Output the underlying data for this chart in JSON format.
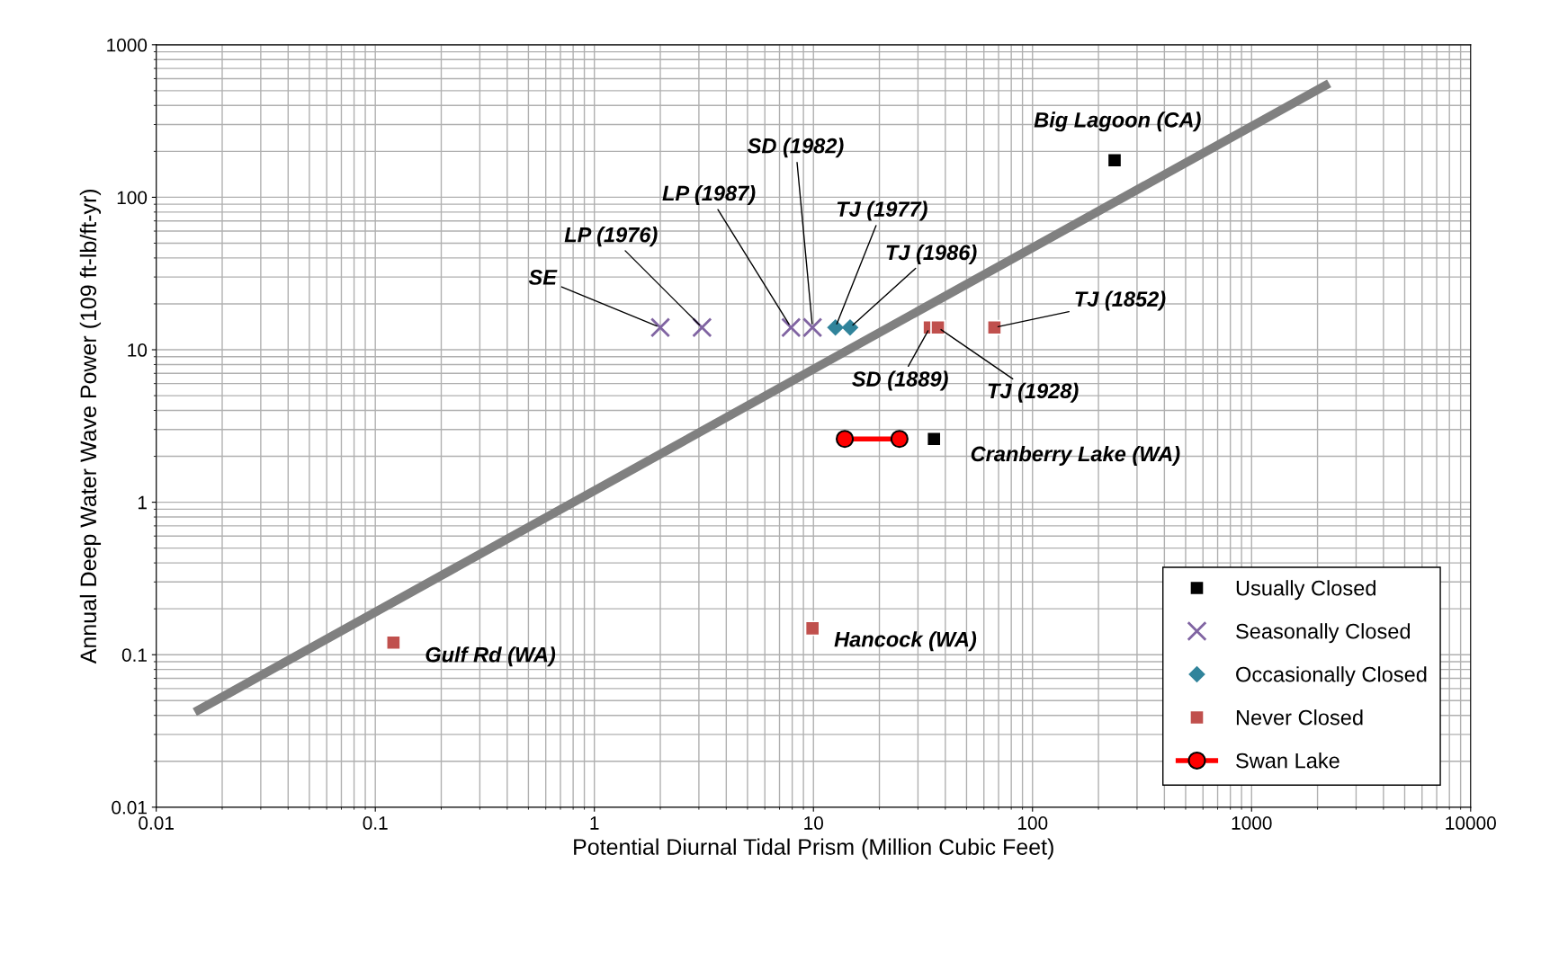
{
  "chart_data": {
    "type": "scatter",
    "xlabel": "Potential Diurnal Tidal Prism (Million Cubic Feet)",
    "ylabel": "Annual Deep Water Wave Power (109 ft-lb/ft-yr)",
    "log": "xy",
    "grid": true,
    "legend": "bottom right",
    "xlim": [
      0.01,
      10000
    ],
    "xticks": [
      0.01,
      0.1,
      1,
      10,
      100,
      1000,
      10000
    ],
    "ylim": [
      0.01,
      1000
    ],
    "yticks": [
      0.01,
      0.1,
      1,
      10,
      100,
      1000
    ],
    "series": [
      {
        "type": "line",
        "color": "#808080",
        "marker": "none",
        "x": [
          0.015,
          2260
        ],
        "values": [
          0.042,
          559
        ]
      },
      {
        "name": "Usually Closed",
        "color": "#000000",
        "marker": "square",
        "x": [
          237,
          35.5
        ],
        "values": [
          175,
          2.6
        ]
      },
      {
        "name": "Seasonally Closed",
        "color": "#8064a2",
        "marker": "cross",
        "x": [
          2.0,
          3.1,
          7.9,
          9.9
        ],
        "values": [
          14,
          14,
          14,
          14
        ]
      },
      {
        "name": "Occasionally Closed",
        "color": "#31849b",
        "marker": "diamond",
        "x": [
          12.6,
          14.7
        ],
        "values": [
          14,
          14
        ]
      },
      {
        "name": "Never Closed",
        "color": "#c0504d",
        "marker": "square",
        "x": [
          34,
          37,
          67,
          0.121,
          9.9
        ],
        "values": [
          14,
          14,
          14,
          0.12,
          0.149
        ]
      },
      {
        "name": "Swan Lake",
        "type": "line",
        "color": "#ff0000",
        "marker": "circle",
        "x": [
          13.9,
          24.7
        ],
        "values": [
          2.6,
          2.6
        ]
      }
    ],
    "annotations": [
      {
        "text": "SE",
        "x": 2.0,
        "y": 14
      },
      {
        "text": "LP (1976)",
        "x": 3.1,
        "y": 14
      },
      {
        "text": "LP (1987)",
        "x": 7.9,
        "y": 14
      },
      {
        "text": "SD (1982)",
        "x": 9.9,
        "y": 14
      },
      {
        "text": "TJ (1977)",
        "x": 12.6,
        "y": 14
      },
      {
        "text": "TJ (1986)",
        "x": 14.7,
        "y": 14
      },
      {
        "text": "TJ (1852)",
        "x": 67,
        "y": 14
      },
      {
        "text": "SD (1889)",
        "x": 34,
        "y": 14
      },
      {
        "text": "TJ (1928)",
        "x": 37,
        "y": 14
      },
      {
        "text": "Big Lagoon (CA)",
        "x": 237,
        "y": 175
      },
      {
        "text": "Cranberry Lake (WA)",
        "x": 35.5,
        "y": 2.6
      },
      {
        "text": "Gulf Rd (WA)",
        "x": 0.121,
        "y": 0.12
      },
      {
        "text": "Hancock (WA)",
        "x": 9.9,
        "y": 0.149
      }
    ]
  }
}
